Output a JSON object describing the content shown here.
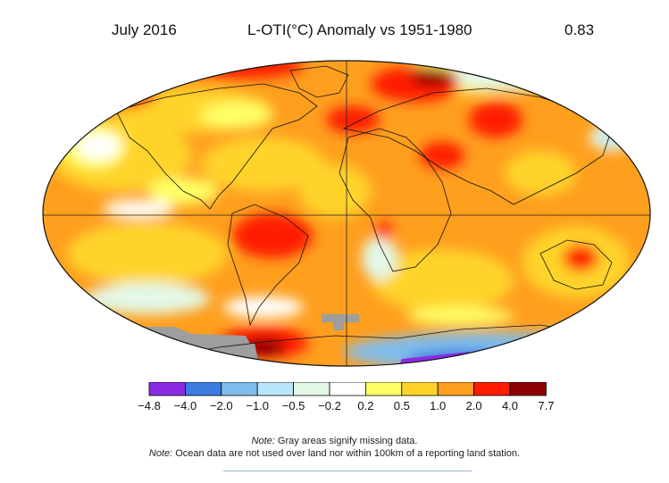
{
  "header": {
    "month": "July 2016",
    "title": "L-OTI(°C) Anomaly vs 1951-1980",
    "mean_value": "0.83"
  },
  "legend": {
    "ticks": [
      "−4.8",
      "−4.0",
      "−2.0",
      "−1.0",
      "−0.5",
      "−0.2",
      "0.2",
      "0.5",
      "1.0",
      "2.0",
      "4.0",
      "7.7"
    ],
    "colors": [
      "#8a2be2",
      "#3b7de0",
      "#7fbcec",
      "#b9e6fb",
      "#e3f8e6",
      "#ffffff",
      "#ffff66",
      "#ffd42a",
      "#ff9f1e",
      "#ff1a00",
      "#8b0000"
    ]
  },
  "notes": {
    "note_label": "Note:",
    "note1_text": " Gray areas signify missing data.",
    "note2_text": " Ocean data are not used over land nor within 100km of a reporting land station."
  },
  "missing_color": "#9e9e9e"
}
